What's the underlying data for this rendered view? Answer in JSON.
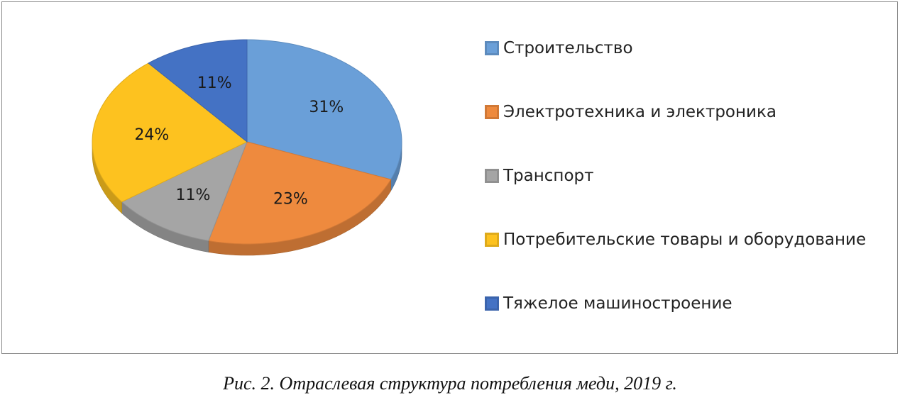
{
  "chart_data": {
    "type": "pie",
    "title": "",
    "slices": [
      {
        "label": "Строительство",
        "value": 31,
        "value_label": "31%",
        "color": "#6A9FD8"
      },
      {
        "label": "Электротехника и электроника",
        "value": 23,
        "value_label": "23%",
        "color": "#EE8A3E"
      },
      {
        "label": "Транспорт",
        "value": 11,
        "value_label": "11%",
        "color": "#A5A5A5"
      },
      {
        "label": "Потребительские товары и оборудование",
        "value": 24,
        "value_label": "24%",
        "color": "#FDC21F"
      },
      {
        "label": "Тяжелое машиностроение",
        "value": 11,
        "value_label": "11%",
        "color": "#4472C4"
      }
    ],
    "legend_position": "right",
    "style": "3d"
  },
  "caption": "Рис. 2. Отраслевая структура потребления меди, 2019 г."
}
